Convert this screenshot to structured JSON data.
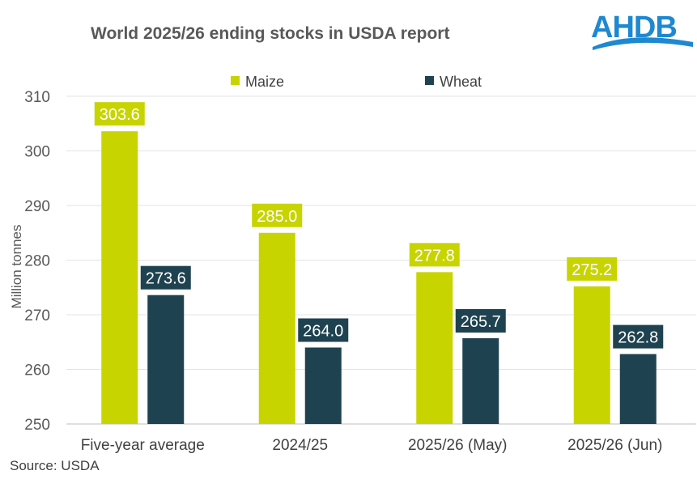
{
  "chart_data": {
    "type": "bar",
    "title": "World 2025/26 ending stocks in USDA report",
    "ylabel": "Million tonnes",
    "xlabel": "",
    "ylim": [
      250,
      310
    ],
    "yticks": [
      250,
      260,
      270,
      280,
      290,
      300,
      310
    ],
    "grid": true,
    "legend_position": "top",
    "categories": [
      "Five-year average",
      "2024/25",
      "2025/26 (May)",
      "2025/26 (Jun)"
    ],
    "series": [
      {
        "name": "Maize",
        "color": "#c8d400",
        "values": [
          303.6,
          285.0,
          277.8,
          275.2
        ]
      },
      {
        "name": "Wheat",
        "color": "#1f4250",
        "values": [
          273.6,
          264.0,
          265.7,
          262.8
        ]
      }
    ],
    "source": "Source: USDA"
  },
  "logo": {
    "text": "AHDB",
    "color": "#1e88d0"
  }
}
